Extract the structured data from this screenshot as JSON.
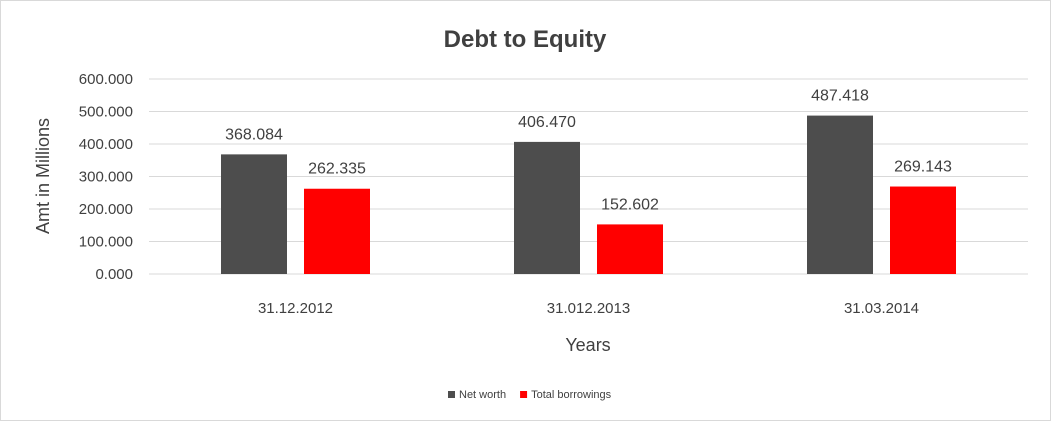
{
  "chart_data": {
    "type": "bar",
    "title": "Debt to Equity",
    "xlabel": "Years",
    "ylabel": "Amt in Millions",
    "categories": [
      "31.12.2012",
      "31.012.2013",
      "31.03.2014"
    ],
    "series": [
      {
        "name": "Net worth",
        "color": "#4d4d4d",
        "values": [
          368.084,
          406.47,
          487.418
        ],
        "labels": [
          "368.084",
          "406.470",
          "487.418"
        ]
      },
      {
        "name": "Total borrowings",
        "color": "#ff0000",
        "values": [
          262.335,
          152.602,
          269.143
        ],
        "labels": [
          "262.335",
          "152.602",
          "269.143"
        ]
      }
    ],
    "ylim": [
      0,
      600
    ],
    "yticks": [
      "0.000",
      "100.000",
      "200.000",
      "300.000",
      "400.000",
      "500.000",
      "600.000"
    ],
    "grid": true,
    "legend_position": "bottom"
  }
}
